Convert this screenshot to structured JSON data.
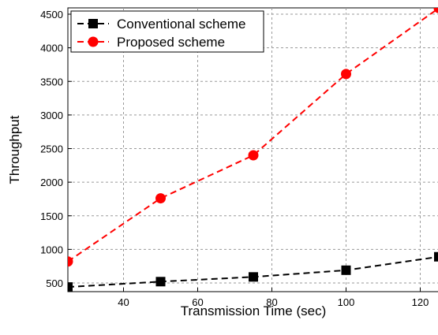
{
  "chart_data": {
    "type": "line",
    "xlabel": "Transmission Time (sec)",
    "ylabel": "Throughput",
    "xlim": [
      25,
      125
    ],
    "ylim": [
      400,
      4600
    ],
    "xticks": [
      40,
      60,
      80,
      100,
      120
    ],
    "yticks": [
      500,
      1000,
      1500,
      2000,
      2500,
      3000,
      3500,
      4000,
      4500
    ],
    "grid": true,
    "legend_position": "top-left",
    "series": [
      {
        "name": "Conventional scheme",
        "color": "#000000",
        "marker": "square",
        "line_style": "dashed",
        "x": [
          25,
          50,
          75,
          100,
          125
        ],
        "y": [
          440,
          520,
          590,
          690,
          890
        ]
      },
      {
        "name": "Proposed scheme",
        "color": "#ff0000",
        "marker": "circle",
        "line_style": "dashed",
        "x": [
          25,
          50,
          75,
          100,
          125
        ],
        "y": [
          820,
          1760,
          2400,
          3610,
          4590
        ]
      }
    ]
  }
}
